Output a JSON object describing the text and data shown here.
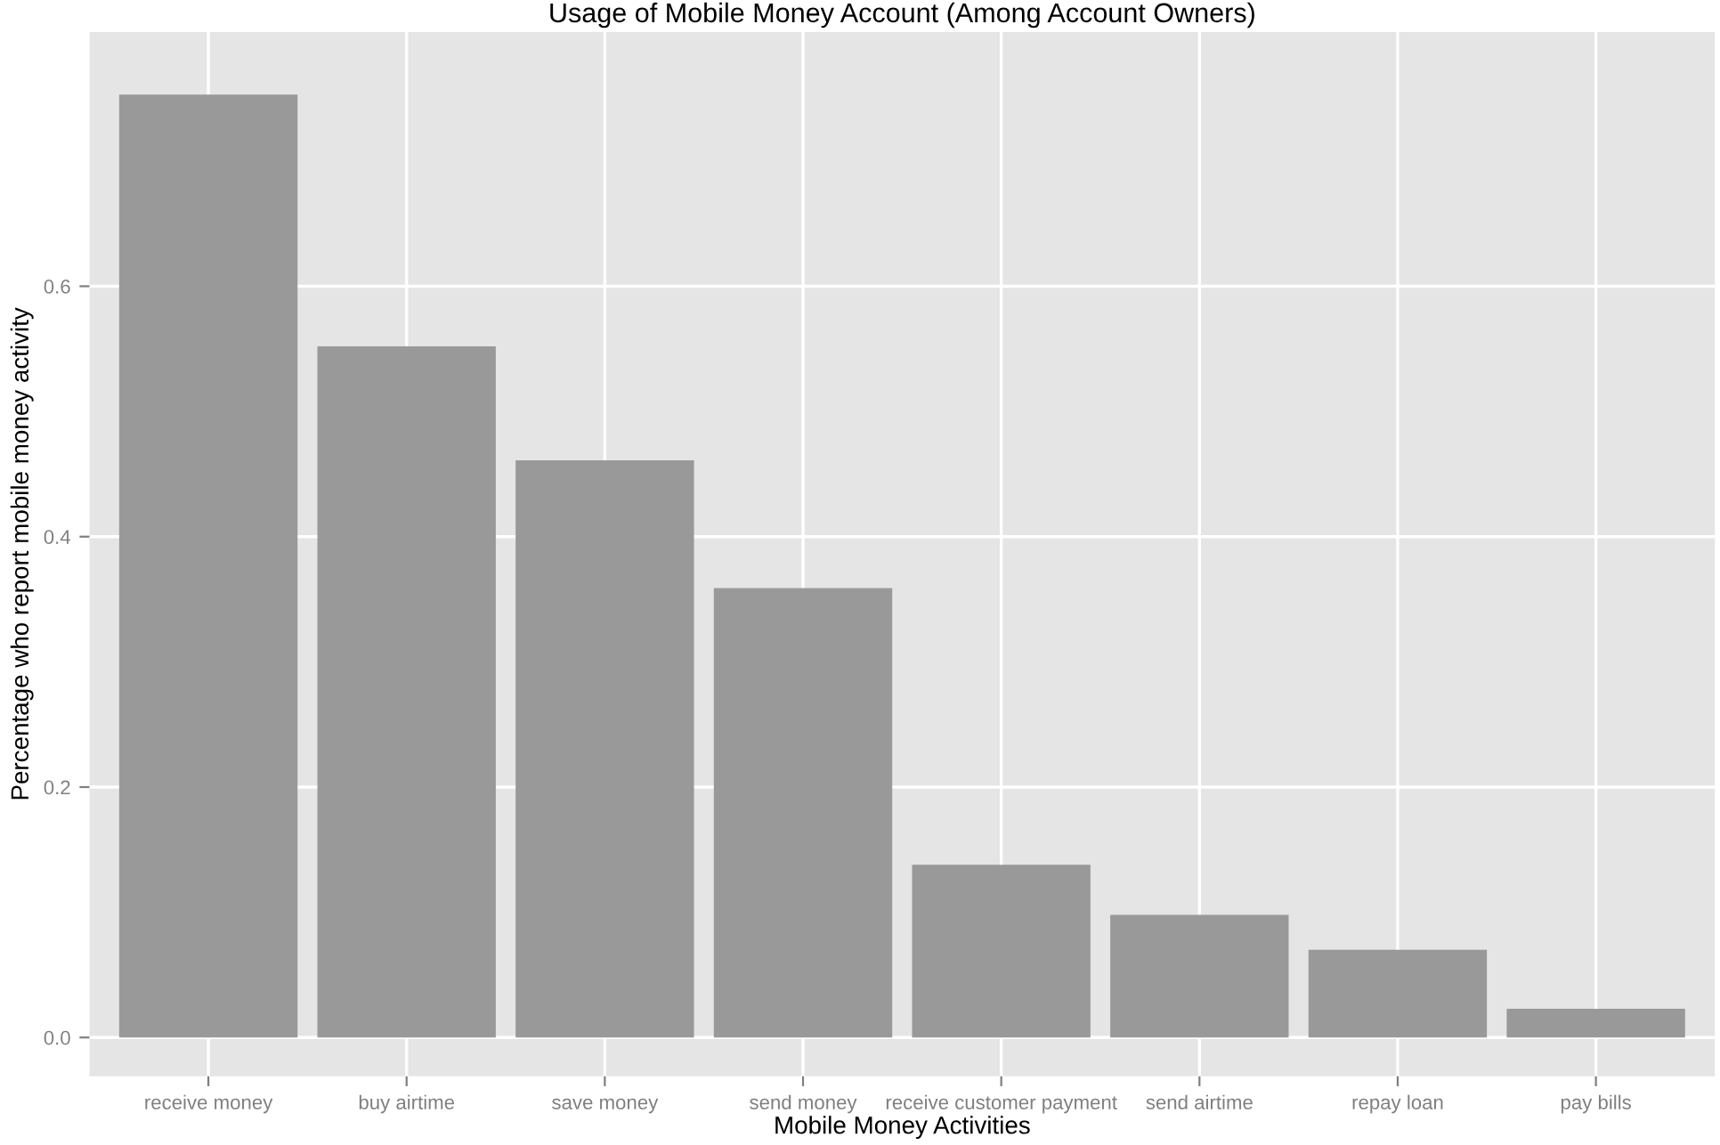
{
  "chart_data": {
    "type": "bar",
    "title": "Usage of Mobile Money Account (Among Account Owners)",
    "xlabel": "Mobile Money Activities",
    "ylabel": "Percentage who report mobile money activity",
    "categories": [
      "receive money",
      "buy airtime",
      "save money",
      "send money",
      "receive customer payment",
      "send airtime",
      "repay loan",
      "pay bills"
    ],
    "values": [
      0.753,
      0.552,
      0.461,
      0.359,
      0.138,
      0.098,
      0.07,
      0.023
    ],
    "color": "#999999",
    "ylim": [
      -0.031,
      0.803
    ],
    "yticks": [
      {
        "value": 0,
        "label": "0.0"
      },
      {
        "value": 0.2,
        "label": "0.2"
      },
      {
        "value": 0.4,
        "label": "0.4"
      },
      {
        "value": 0.6,
        "label": "0.6"
      }
    ],
    "grid": true
  }
}
